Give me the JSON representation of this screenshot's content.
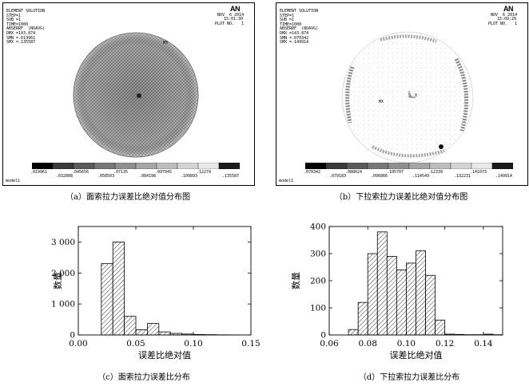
{
  "panel_a": {
    "header_lines": [
      "ELEMENT SOLUTION",
      "STEP=1",
      "SUB =1",
      "TIME=1000",
      "ABSERRF  (NOAVG)",
      "DMX =143.874",
      "SMN =.019961",
      "SMX =.135587"
    ],
    "logo": "AN",
    "date": "NOV  6 2014",
    "time": "15:01:30",
    "plot_no": "PLOT NO.   1",
    "marker": "MX",
    "colorbar_top": [
      ".019961",
      ".045656",
      ".07135",
      ".097045",
      ".12274"
    ],
    "colorbar_bottom": [
      ".032808",
      ".058503",
      ".084198",
      ".109893",
      ".135587"
    ],
    "model": "model1",
    "caption": "（a）面索拉力误差比绝对值分布图"
  },
  "panel_b": {
    "header_lines": [
      "ELEMENT SOLUTION",
      "STEP=1",
      "SUB =1",
      "TIME=1000",
      "ABSERRF  (NOAVG)",
      "DMX =143.874",
      "SMN =.070342",
      "SMX =.149914"
    ],
    "logo": "AN",
    "date": "NOV  6 2014",
    "time": "15:09:20",
    "plot_no": "PLOT NO.   1",
    "marker": "MX",
    "axis_label": "L_X",
    "colorbar_top": [
      ".070342",
      ".088024",
      ".105707",
      ".12339",
      ".141073"
    ],
    "colorbar_bottom": [
      ".079183",
      ".096866",
      ".114549",
      ".132231",
      ".149914"
    ],
    "model": "model1",
    "caption": "（b）下拉索拉力误差比绝对值分布图"
  },
  "colors": {
    "bar_fill": "#ffffff",
    "hatch": "#000000",
    "colorbar": [
      "#000000",
      "#3a3a3a",
      "#595959",
      "#777777",
      "#8f8f8f",
      "#a6a6a6",
      "#bdbdbd",
      "#d4d4d4",
      "#e8e8e8",
      "#1a1a1a"
    ]
  },
  "chart_data": [
    {
      "type": "bar",
      "title": "",
      "xlabel": "误差比绝对值",
      "ylabel": "数量",
      "xlim": [
        0.0,
        0.15
      ],
      "ylim": [
        0,
        3500
      ],
      "xticks": [
        0.0,
        0.05,
        0.1,
        0.15
      ],
      "xtick_labels": [
        "0.00",
        "0.05",
        "0.10",
        "0.15"
      ],
      "yticks": [
        0,
        1000,
        2000,
        3000
      ],
      "ytick_labels": [
        "0",
        "1 000",
        "2 000",
        "3 000"
      ],
      "bin_width": 0.01,
      "bins": [
        {
          "x0": 0.02,
          "value": 2300
        },
        {
          "x0": 0.03,
          "value": 3000
        },
        {
          "x0": 0.04,
          "value": 600
        },
        {
          "x0": 0.05,
          "value": 170
        },
        {
          "x0": 0.06,
          "value": 370
        },
        {
          "x0": 0.07,
          "value": 100
        },
        {
          "x0": 0.08,
          "value": 50
        },
        {
          "x0": 0.09,
          "value": 30
        },
        {
          "x0": 0.1,
          "value": 15
        },
        {
          "x0": 0.11,
          "value": 10
        },
        {
          "x0": 0.12,
          "value": 5
        },
        {
          "x0": 0.13,
          "value": 3
        }
      ],
      "caption": "（c）面索拉力误差比分布"
    },
    {
      "type": "bar",
      "title": "",
      "xlabel": "误差比绝对值",
      "ylabel": "数量",
      "xlim": [
        0.06,
        0.15
      ],
      "ylim": [
        0,
        400
      ],
      "xticks": [
        0.06,
        0.08,
        0.1,
        0.12,
        0.14
      ],
      "xtick_labels": [
        "0.06",
        "0.08",
        "0.10",
        "0.12",
        "0.14"
      ],
      "yticks": [
        0,
        100,
        200,
        300,
        400
      ],
      "ytick_labels": [
        "0",
        "100",
        "200",
        "300",
        "400"
      ],
      "bin_width": 0.005,
      "bins": [
        {
          "x0": 0.07,
          "value": 20
        },
        {
          "x0": 0.075,
          "value": 120
        },
        {
          "x0": 0.08,
          "value": 300
        },
        {
          "x0": 0.085,
          "value": 380
        },
        {
          "x0": 0.09,
          "value": 290
        },
        {
          "x0": 0.095,
          "value": 240
        },
        {
          "x0": 0.1,
          "value": 265
        },
        {
          "x0": 0.105,
          "value": 310
        },
        {
          "x0": 0.11,
          "value": 220
        },
        {
          "x0": 0.115,
          "value": 55
        },
        {
          "x0": 0.12,
          "value": 3
        },
        {
          "x0": 0.125,
          "value": 2
        },
        {
          "x0": 0.13,
          "value": 1
        },
        {
          "x0": 0.135,
          "value": 1
        },
        {
          "x0": 0.14,
          "value": 3
        },
        {
          "x0": 0.145,
          "value": 1
        }
      ],
      "caption": "（d）下拉索拉力误差比分布"
    }
  ]
}
